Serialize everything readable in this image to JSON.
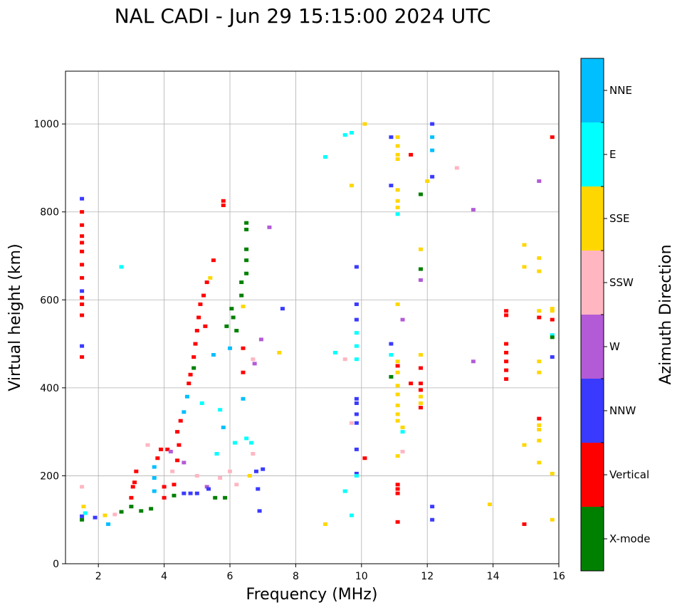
{
  "chart_data": {
    "type": "scatter",
    "title": "NAL CADI - Jun 29 15:15:00 2024 UTC",
    "xlabel": "Frequency (MHz)",
    "ylabel": "Virtual height (km)",
    "xlim": [
      1,
      16
    ],
    "ylim": [
      0,
      1120
    ],
    "xticks": [
      2,
      4,
      6,
      8,
      10,
      12,
      14,
      16
    ],
    "yticks": [
      0,
      200,
      400,
      600,
      800,
      1000
    ],
    "grid": true,
    "colorbar": {
      "label": "Azimuth Direction",
      "categories": [
        {
          "name": "X-mode",
          "color": "#008000"
        },
        {
          "name": "Vertical",
          "color": "#ff0000"
        },
        {
          "name": "NNW",
          "color": "#3a3aff"
        },
        {
          "name": "W",
          "color": "#b35bd6"
        },
        {
          "name": "SSW",
          "color": "#ffb6c1"
        },
        {
          "name": "SSE",
          "color": "#ffd700"
        },
        {
          "name": "E",
          "color": "#00ffff"
        },
        {
          "name": "NNE",
          "color": "#00bfff"
        }
      ]
    },
    "points": [
      {
        "f": 1.5,
        "h": 100,
        "c": "X-mode"
      },
      {
        "f": 1.5,
        "h": 108,
        "c": "NNW"
      },
      {
        "f": 1.6,
        "h": 115,
        "c": "E"
      },
      {
        "f": 1.55,
        "h": 130,
        "c": "SSE"
      },
      {
        "f": 1.5,
        "h": 175,
        "c": "SSW"
      },
      {
        "f": 1.5,
        "h": 470,
        "c": "Vertical"
      },
      {
        "f": 1.5,
        "h": 495,
        "c": "NNW"
      },
      {
        "f": 1.5,
        "h": 565,
        "c": "Vertical"
      },
      {
        "f": 1.5,
        "h": 590,
        "c": "Vertical"
      },
      {
        "f": 1.5,
        "h": 605,
        "c": "Vertical"
      },
      {
        "f": 1.5,
        "h": 620,
        "c": "NNW"
      },
      {
        "f": 1.5,
        "h": 650,
        "c": "Vertical"
      },
      {
        "f": 1.5,
        "h": 680,
        "c": "Vertical"
      },
      {
        "f": 1.5,
        "h": 710,
        "c": "Vertical"
      },
      {
        "f": 1.5,
        "h": 730,
        "c": "Vertical"
      },
      {
        "f": 1.5,
        "h": 745,
        "c": "Vertical"
      },
      {
        "f": 1.5,
        "h": 770,
        "c": "Vertical"
      },
      {
        "f": 1.5,
        "h": 800,
        "c": "Vertical"
      },
      {
        "f": 1.5,
        "h": 830,
        "c": "NNW"
      },
      {
        "f": 1.9,
        "h": 105,
        "c": "NNW"
      },
      {
        "f": 2.2,
        "h": 110,
        "c": "SSE"
      },
      {
        "f": 2.5,
        "h": 112,
        "c": "SSW"
      },
      {
        "f": 2.7,
        "h": 118,
        "c": "X-mode"
      },
      {
        "f": 2.3,
        "h": 90,
        "c": "NNE"
      },
      {
        "f": 2.7,
        "h": 675,
        "c": "E"
      },
      {
        "f": 3.0,
        "h": 130,
        "c": "X-mode"
      },
      {
        "f": 3.0,
        "h": 150,
        "c": "Vertical"
      },
      {
        "f": 3.05,
        "h": 175,
        "c": "Vertical"
      },
      {
        "f": 3.1,
        "h": 185,
        "c": "Vertical"
      },
      {
        "f": 3.15,
        "h": 210,
        "c": "Vertical"
      },
      {
        "f": 3.3,
        "h": 120,
        "c": "X-mode"
      },
      {
        "f": 3.5,
        "h": 270,
        "c": "SSW"
      },
      {
        "f": 3.6,
        "h": 125,
        "c": "X-mode"
      },
      {
        "f": 3.7,
        "h": 165,
        "c": "NNE"
      },
      {
        "f": 3.7,
        "h": 195,
        "c": "NNE"
      },
      {
        "f": 3.7,
        "h": 220,
        "c": "NNE"
      },
      {
        "f": 3.8,
        "h": 240,
        "c": "Vertical"
      },
      {
        "f": 3.9,
        "h": 260,
        "c": "Vertical"
      },
      {
        "f": 4.0,
        "h": 175,
        "c": "Vertical"
      },
      {
        "f": 4.0,
        "h": 150,
        "c": "Vertical"
      },
      {
        "f": 4.1,
        "h": 260,
        "c": "Vertical"
      },
      {
        "f": 4.2,
        "h": 255,
        "c": "W"
      },
      {
        "f": 4.25,
        "h": 210,
        "c": "SSW"
      },
      {
        "f": 4.3,
        "h": 180,
        "c": "Vertical"
      },
      {
        "f": 4.3,
        "h": 155,
        "c": "X-mode"
      },
      {
        "f": 4.4,
        "h": 235,
        "c": "Vertical"
      },
      {
        "f": 4.4,
        "h": 300,
        "c": "Vertical"
      },
      {
        "f": 4.45,
        "h": 270,
        "c": "Vertical"
      },
      {
        "f": 4.5,
        "h": 325,
        "c": "Vertical"
      },
      {
        "f": 4.6,
        "h": 345,
        "c": "NNE"
      },
      {
        "f": 4.6,
        "h": 230,
        "c": "W"
      },
      {
        "f": 4.6,
        "h": 160,
        "c": "NNW"
      },
      {
        "f": 4.7,
        "h": 380,
        "c": "NNE"
      },
      {
        "f": 4.75,
        "h": 410,
        "c": "Vertical"
      },
      {
        "f": 4.8,
        "h": 430,
        "c": "Vertical"
      },
      {
        "f": 4.8,
        "h": 160,
        "c": "NNW"
      },
      {
        "f": 4.9,
        "h": 445,
        "c": "X-mode"
      },
      {
        "f": 4.9,
        "h": 470,
        "c": "Vertical"
      },
      {
        "f": 4.95,
        "h": 500,
        "c": "Vertical"
      },
      {
        "f": 5.0,
        "h": 530,
        "c": "Vertical"
      },
      {
        "f": 5.0,
        "h": 160,
        "c": "NNW"
      },
      {
        "f": 5.0,
        "h": 200,
        "c": "SSW"
      },
      {
        "f": 5.05,
        "h": 560,
        "c": "Vertical"
      },
      {
        "f": 5.1,
        "h": 590,
        "c": "Vertical"
      },
      {
        "f": 5.15,
        "h": 365,
        "c": "E"
      },
      {
        "f": 5.2,
        "h": 610,
        "c": "Vertical"
      },
      {
        "f": 5.25,
        "h": 540,
        "c": "Vertical"
      },
      {
        "f": 5.3,
        "h": 640,
        "c": "Vertical"
      },
      {
        "f": 5.3,
        "h": 175,
        "c": "W"
      },
      {
        "f": 5.35,
        "h": 170,
        "c": "NNW"
      },
      {
        "f": 5.4,
        "h": 650,
        "c": "SSE"
      },
      {
        "f": 5.5,
        "h": 690,
        "c": "Vertical"
      },
      {
        "f": 5.5,
        "h": 475,
        "c": "NNE"
      },
      {
        "f": 5.55,
        "h": 150,
        "c": "X-mode"
      },
      {
        "f": 5.6,
        "h": 250,
        "c": "E"
      },
      {
        "f": 5.7,
        "h": 195,
        "c": "SSW"
      },
      {
        "f": 5.7,
        "h": 350,
        "c": "E"
      },
      {
        "f": 5.8,
        "h": 815,
        "c": "Vertical"
      },
      {
        "f": 5.8,
        "h": 825,
        "c": "Vertical"
      },
      {
        "f": 5.8,
        "h": 310,
        "c": "NNE"
      },
      {
        "f": 5.85,
        "h": 150,
        "c": "X-mode"
      },
      {
        "f": 5.9,
        "h": 540,
        "c": "X-mode"
      },
      {
        "f": 6.0,
        "h": 490,
        "c": "NNE"
      },
      {
        "f": 6.0,
        "h": 210,
        "c": "SSW"
      },
      {
        "f": 6.05,
        "h": 580,
        "c": "X-mode"
      },
      {
        "f": 6.1,
        "h": 560,
        "c": "X-mode"
      },
      {
        "f": 6.15,
        "h": 275,
        "c": "E"
      },
      {
        "f": 6.2,
        "h": 530,
        "c": "X-mode"
      },
      {
        "f": 6.2,
        "h": 180,
        "c": "SSW"
      },
      {
        "f": 6.35,
        "h": 610,
        "c": "X-mode"
      },
      {
        "f": 6.35,
        "h": 640,
        "c": "X-mode"
      },
      {
        "f": 6.4,
        "h": 585,
        "c": "SSE"
      },
      {
        "f": 6.4,
        "h": 490,
        "c": "Vertical"
      },
      {
        "f": 6.4,
        "h": 435,
        "c": "Vertical"
      },
      {
        "f": 6.4,
        "h": 375,
        "c": "NNE"
      },
      {
        "f": 6.5,
        "h": 660,
        "c": "X-mode"
      },
      {
        "f": 6.5,
        "h": 690,
        "c": "X-mode"
      },
      {
        "f": 6.5,
        "h": 715,
        "c": "X-mode"
      },
      {
        "f": 6.5,
        "h": 760,
        "c": "X-mode"
      },
      {
        "f": 6.5,
        "h": 775,
        "c": "X-mode"
      },
      {
        "f": 6.5,
        "h": 285,
        "c": "E"
      },
      {
        "f": 6.6,
        "h": 200,
        "c": "SSE"
      },
      {
        "f": 6.65,
        "h": 275,
        "c": "E"
      },
      {
        "f": 6.7,
        "h": 250,
        "c": "SSW"
      },
      {
        "f": 6.7,
        "h": 465,
        "c": "SSW"
      },
      {
        "f": 6.75,
        "h": 455,
        "c": "W"
      },
      {
        "f": 6.8,
        "h": 210,
        "c": "NNW"
      },
      {
        "f": 6.85,
        "h": 170,
        "c": "NNW"
      },
      {
        "f": 6.9,
        "h": 120,
        "c": "NNW"
      },
      {
        "f": 6.95,
        "h": 510,
        "c": "W"
      },
      {
        "f": 7.0,
        "h": 215,
        "c": "NNW"
      },
      {
        "f": 7.2,
        "h": 765,
        "c": "W"
      },
      {
        "f": 7.5,
        "h": 480,
        "c": "SSE"
      },
      {
        "f": 7.6,
        "h": 580,
        "c": "NNW"
      },
      {
        "f": 8.9,
        "h": 925,
        "c": "E"
      },
      {
        "f": 8.9,
        "h": 90,
        "c": "SSE"
      },
      {
        "f": 9.2,
        "h": 480,
        "c": "E"
      },
      {
        "f": 9.5,
        "h": 465,
        "c": "SSW"
      },
      {
        "f": 9.5,
        "h": 975,
        "c": "E"
      },
      {
        "f": 9.5,
        "h": 165,
        "c": "E"
      },
      {
        "f": 9.7,
        "h": 980,
        "c": "E"
      },
      {
        "f": 9.7,
        "h": 860,
        "c": "SSE"
      },
      {
        "f": 9.7,
        "h": 320,
        "c": "SSW"
      },
      {
        "f": 9.7,
        "h": 110,
        "c": "E"
      },
      {
        "f": 9.85,
        "h": 675,
        "c": "NNW"
      },
      {
        "f": 9.85,
        "h": 590,
        "c": "NNW"
      },
      {
        "f": 9.85,
        "h": 555,
        "c": "NNW"
      },
      {
        "f": 9.85,
        "h": 525,
        "c": "E"
      },
      {
        "f": 9.85,
        "h": 495,
        "c": "E"
      },
      {
        "f": 9.85,
        "h": 465,
        "c": "E"
      },
      {
        "f": 9.85,
        "h": 375,
        "c": "NNW"
      },
      {
        "f": 9.85,
        "h": 365,
        "c": "NNW"
      },
      {
        "f": 9.85,
        "h": 340,
        "c": "NNW"
      },
      {
        "f": 9.85,
        "h": 320,
        "c": "NNW"
      },
      {
        "f": 9.85,
        "h": 260,
        "c": "NNW"
      },
      {
        "f": 9.85,
        "h": 205,
        "c": "NNW"
      },
      {
        "f": 9.85,
        "h": 200,
        "c": "E"
      },
      {
        "f": 10.1,
        "h": 1000,
        "c": "SSE"
      },
      {
        "f": 10.1,
        "h": 240,
        "c": "Vertical"
      },
      {
        "f": 10.9,
        "h": 970,
        "c": "NNW"
      },
      {
        "f": 10.9,
        "h": 860,
        "c": "NNW"
      },
      {
        "f": 10.9,
        "h": 500,
        "c": "NNW"
      },
      {
        "f": 10.9,
        "h": 475,
        "c": "E"
      },
      {
        "f": 10.9,
        "h": 425,
        "c": "X-mode"
      },
      {
        "f": 11.1,
        "h": 970,
        "c": "SSE"
      },
      {
        "f": 11.1,
        "h": 950,
        "c": "SSE"
      },
      {
        "f": 11.1,
        "h": 930,
        "c": "SSE"
      },
      {
        "f": 11.1,
        "h": 920,
        "c": "SSE"
      },
      {
        "f": 11.1,
        "h": 850,
        "c": "SSE"
      },
      {
        "f": 11.1,
        "h": 825,
        "c": "SSE"
      },
      {
        "f": 11.1,
        "h": 810,
        "c": "SSE"
      },
      {
        "f": 11.1,
        "h": 795,
        "c": "E"
      },
      {
        "f": 11.1,
        "h": 590,
        "c": "SSE"
      },
      {
        "f": 11.1,
        "h": 460,
        "c": "SSE"
      },
      {
        "f": 11.1,
        "h": 450,
        "c": "Vertical"
      },
      {
        "f": 11.1,
        "h": 435,
        "c": "SSE"
      },
      {
        "f": 11.1,
        "h": 405,
        "c": "SSE"
      },
      {
        "f": 11.1,
        "h": 385,
        "c": "SSE"
      },
      {
        "f": 11.1,
        "h": 360,
        "c": "SSE"
      },
      {
        "f": 11.1,
        "h": 340,
        "c": "SSE"
      },
      {
        "f": 11.1,
        "h": 325,
        "c": "SSE"
      },
      {
        "f": 11.1,
        "h": 245,
        "c": "SSE"
      },
      {
        "f": 11.1,
        "h": 180,
        "c": "Vertical"
      },
      {
        "f": 11.1,
        "h": 170,
        "c": "Vertical"
      },
      {
        "f": 11.1,
        "h": 160,
        "c": "Vertical"
      },
      {
        "f": 11.1,
        "h": 95,
        "c": "Vertical"
      },
      {
        "f": 11.25,
        "h": 555,
        "c": "W"
      },
      {
        "f": 11.25,
        "h": 310,
        "c": "SSE"
      },
      {
        "f": 11.25,
        "h": 300,
        "c": "E"
      },
      {
        "f": 11.25,
        "h": 255,
        "c": "SSW"
      },
      {
        "f": 11.5,
        "h": 930,
        "c": "Vertical"
      },
      {
        "f": 11.5,
        "h": 410,
        "c": "Vertical"
      },
      {
        "f": 11.8,
        "h": 840,
        "c": "X-mode"
      },
      {
        "f": 11.8,
        "h": 715,
        "c": "SSE"
      },
      {
        "f": 11.8,
        "h": 670,
        "c": "X-mode"
      },
      {
        "f": 11.8,
        "h": 645,
        "c": "W"
      },
      {
        "f": 11.8,
        "h": 475,
        "c": "SSE"
      },
      {
        "f": 11.8,
        "h": 445,
        "c": "Vertical"
      },
      {
        "f": 11.8,
        "h": 410,
        "c": "Vertical"
      },
      {
        "f": 11.8,
        "h": 395,
        "c": "Vertical"
      },
      {
        "f": 11.8,
        "h": 380,
        "c": "SSE"
      },
      {
        "f": 11.8,
        "h": 365,
        "c": "SSE"
      },
      {
        "f": 11.8,
        "h": 355,
        "c": "Vertical"
      },
      {
        "f": 12.0,
        "h": 870,
        "c": "SSE"
      },
      {
        "f": 12.15,
        "h": 1000,
        "c": "NNW"
      },
      {
        "f": 12.15,
        "h": 970,
        "c": "NNE"
      },
      {
        "f": 12.15,
        "h": 940,
        "c": "NNE"
      },
      {
        "f": 12.15,
        "h": 880,
        "c": "NNW"
      },
      {
        "f": 12.15,
        "h": 130,
        "c": "NNW"
      },
      {
        "f": 12.15,
        "h": 100,
        "c": "NNW"
      },
      {
        "f": 12.9,
        "h": 900,
        "c": "SSW"
      },
      {
        "f": 13.4,
        "h": 805,
        "c": "W"
      },
      {
        "f": 13.4,
        "h": 460,
        "c": "W"
      },
      {
        "f": 13.9,
        "h": 135,
        "c": "SSE"
      },
      {
        "f": 14.4,
        "h": 575,
        "c": "Vertical"
      },
      {
        "f": 14.4,
        "h": 565,
        "c": "Vertical"
      },
      {
        "f": 14.4,
        "h": 500,
        "c": "Vertical"
      },
      {
        "f": 14.4,
        "h": 480,
        "c": "Vertical"
      },
      {
        "f": 14.4,
        "h": 460,
        "c": "Vertical"
      },
      {
        "f": 14.4,
        "h": 440,
        "c": "Vertical"
      },
      {
        "f": 14.4,
        "h": 420,
        "c": "Vertical"
      },
      {
        "f": 14.95,
        "h": 725,
        "c": "SSE"
      },
      {
        "f": 14.95,
        "h": 675,
        "c": "SSE"
      },
      {
        "f": 14.95,
        "h": 270,
        "c": "SSE"
      },
      {
        "f": 14.95,
        "h": 90,
        "c": "Vertical"
      },
      {
        "f": 15.4,
        "h": 870,
        "c": "W"
      },
      {
        "f": 15.4,
        "h": 695,
        "c": "SSE"
      },
      {
        "f": 15.4,
        "h": 665,
        "c": "SSE"
      },
      {
        "f": 15.4,
        "h": 575,
        "c": "SSE"
      },
      {
        "f": 15.4,
        "h": 560,
        "c": "Vertical"
      },
      {
        "f": 15.4,
        "h": 460,
        "c": "SSE"
      },
      {
        "f": 15.4,
        "h": 435,
        "c": "SSE"
      },
      {
        "f": 15.4,
        "h": 330,
        "c": "Vertical"
      },
      {
        "f": 15.4,
        "h": 315,
        "c": "SSE"
      },
      {
        "f": 15.4,
        "h": 305,
        "c": "SSE"
      },
      {
        "f": 15.4,
        "h": 280,
        "c": "SSE"
      },
      {
        "f": 15.4,
        "h": 230,
        "c": "SSE"
      },
      {
        "f": 15.8,
        "h": 970,
        "c": "Vertical"
      },
      {
        "f": 15.8,
        "h": 580,
        "c": "SSE"
      },
      {
        "f": 15.8,
        "h": 575,
        "c": "SSE"
      },
      {
        "f": 15.8,
        "h": 555,
        "c": "Vertical"
      },
      {
        "f": 15.8,
        "h": 520,
        "c": "E"
      },
      {
        "f": 15.8,
        "h": 515,
        "c": "X-mode"
      },
      {
        "f": 15.8,
        "h": 470,
        "c": "NNW"
      },
      {
        "f": 15.8,
        "h": 205,
        "c": "SSE"
      },
      {
        "f": 15.8,
        "h": 100,
        "c": "SSE"
      }
    ]
  }
}
